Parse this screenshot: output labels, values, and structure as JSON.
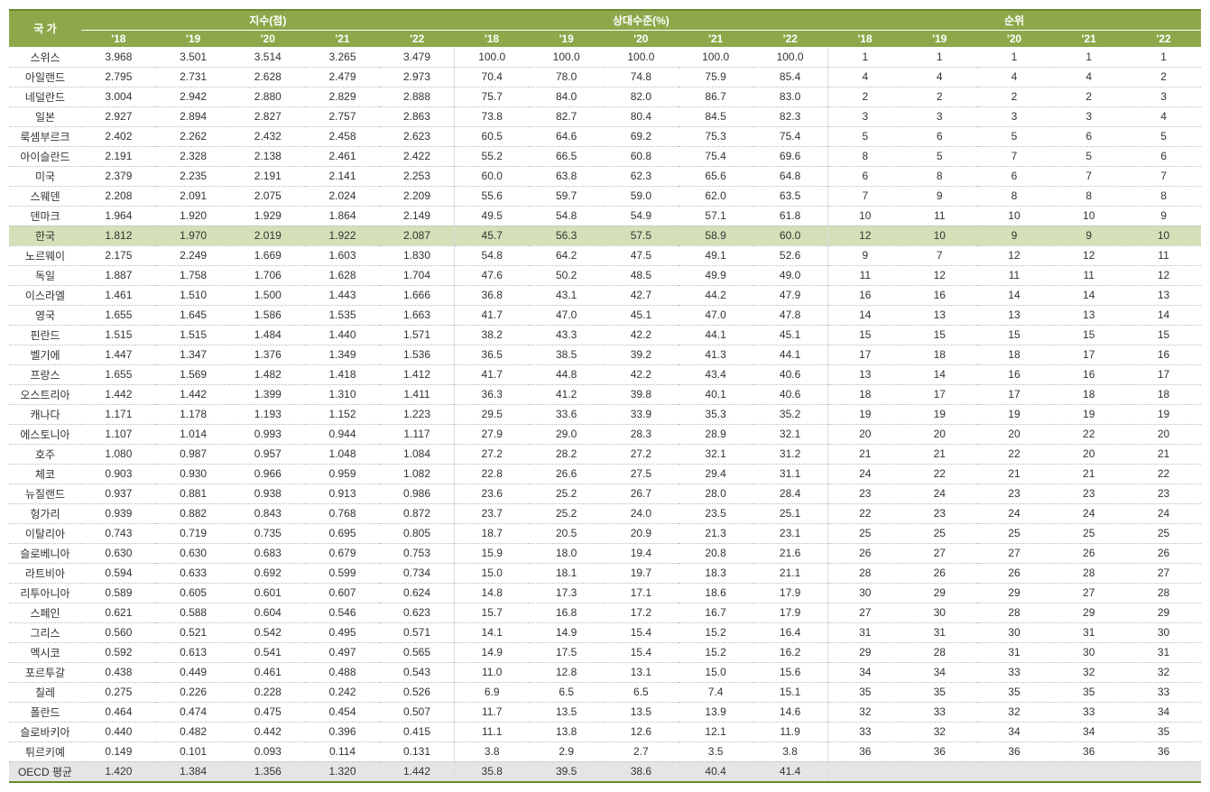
{
  "table": {
    "header": {
      "country_label": "국 가",
      "groups": [
        "지수(점)",
        "상대수준(%)",
        "순위"
      ],
      "years": [
        "'18",
        "'19",
        "'20",
        "'21",
        "'22"
      ]
    },
    "highlight_country": "한국",
    "avg_country": "OECD 평균",
    "colors": {
      "header_bg": "#8ca84a",
      "header_text": "#ffffff",
      "border_top": "#6a8a2f",
      "highlight_bg": "#d4e0b8",
      "avg_bg": "#e5e5e5",
      "row_border": "#bbbbbb"
    },
    "rows": [
      {
        "country": "스위스",
        "index": [
          "3.968",
          "3.501",
          "3.514",
          "3.265",
          "3.479"
        ],
        "relative": [
          "100.0",
          "100.0",
          "100.0",
          "100.0",
          "100.0"
        ],
        "rank": [
          "1",
          "1",
          "1",
          "1",
          "1"
        ]
      },
      {
        "country": "아일랜드",
        "index": [
          "2.795",
          "2.731",
          "2.628",
          "2.479",
          "2.973"
        ],
        "relative": [
          "70.4",
          "78.0",
          "74.8",
          "75.9",
          "85.4"
        ],
        "rank": [
          "4",
          "4",
          "4",
          "4",
          "2"
        ]
      },
      {
        "country": "네덜란드",
        "index": [
          "3.004",
          "2.942",
          "2.880",
          "2.829",
          "2.888"
        ],
        "relative": [
          "75.7",
          "84.0",
          "82.0",
          "86.7",
          "83.0"
        ],
        "rank": [
          "2",
          "2",
          "2",
          "2",
          "3"
        ]
      },
      {
        "country": "일본",
        "index": [
          "2.927",
          "2.894",
          "2.827",
          "2.757",
          "2.863"
        ],
        "relative": [
          "73.8",
          "82.7",
          "80.4",
          "84.5",
          "82.3"
        ],
        "rank": [
          "3",
          "3",
          "3",
          "3",
          "4"
        ]
      },
      {
        "country": "룩셈부르크",
        "index": [
          "2.402",
          "2.262",
          "2.432",
          "2.458",
          "2.623"
        ],
        "relative": [
          "60.5",
          "64.6",
          "69.2",
          "75.3",
          "75.4"
        ],
        "rank": [
          "5",
          "6",
          "5",
          "6",
          "5"
        ]
      },
      {
        "country": "아이슬란드",
        "index": [
          "2.191",
          "2.328",
          "2.138",
          "2.461",
          "2.422"
        ],
        "relative": [
          "55.2",
          "66.5",
          "60.8",
          "75.4",
          "69.6"
        ],
        "rank": [
          "8",
          "5",
          "7",
          "5",
          "6"
        ]
      },
      {
        "country": "미국",
        "index": [
          "2.379",
          "2.235",
          "2.191",
          "2.141",
          "2.253"
        ],
        "relative": [
          "60.0",
          "63.8",
          "62.3",
          "65.6",
          "64.8"
        ],
        "rank": [
          "6",
          "8",
          "6",
          "7",
          "7"
        ]
      },
      {
        "country": "스웨덴",
        "index": [
          "2.208",
          "2.091",
          "2.075",
          "2.024",
          "2.209"
        ],
        "relative": [
          "55.6",
          "59.7",
          "59.0",
          "62.0",
          "63.5"
        ],
        "rank": [
          "7",
          "9",
          "8",
          "8",
          "8"
        ]
      },
      {
        "country": "덴마크",
        "index": [
          "1.964",
          "1.920",
          "1.929",
          "1.864",
          "2.149"
        ],
        "relative": [
          "49.5",
          "54.8",
          "54.9",
          "57.1",
          "61.8"
        ],
        "rank": [
          "10",
          "11",
          "10",
          "10",
          "9"
        ]
      },
      {
        "country": "한국",
        "index": [
          "1.812",
          "1.970",
          "2.019",
          "1.922",
          "2.087"
        ],
        "relative": [
          "45.7",
          "56.3",
          "57.5",
          "58.9",
          "60.0"
        ],
        "rank": [
          "12",
          "10",
          "9",
          "9",
          "10"
        ]
      },
      {
        "country": "노르웨이",
        "index": [
          "2.175",
          "2.249",
          "1.669",
          "1.603",
          "1.830"
        ],
        "relative": [
          "54.8",
          "64.2",
          "47.5",
          "49.1",
          "52.6"
        ],
        "rank": [
          "9",
          "7",
          "12",
          "12",
          "11"
        ]
      },
      {
        "country": "독일",
        "index": [
          "1.887",
          "1.758",
          "1.706",
          "1.628",
          "1.704"
        ],
        "relative": [
          "47.6",
          "50.2",
          "48.5",
          "49.9",
          "49.0"
        ],
        "rank": [
          "11",
          "12",
          "11",
          "11",
          "12"
        ]
      },
      {
        "country": "이스라엘",
        "index": [
          "1.461",
          "1.510",
          "1.500",
          "1.443",
          "1.666"
        ],
        "relative": [
          "36.8",
          "43.1",
          "42.7",
          "44.2",
          "47.9"
        ],
        "rank": [
          "16",
          "16",
          "14",
          "14",
          "13"
        ]
      },
      {
        "country": "영국",
        "index": [
          "1.655",
          "1.645",
          "1.586",
          "1.535",
          "1.663"
        ],
        "relative": [
          "41.7",
          "47.0",
          "45.1",
          "47.0",
          "47.8"
        ],
        "rank": [
          "14",
          "13",
          "13",
          "13",
          "14"
        ]
      },
      {
        "country": "핀란드",
        "index": [
          "1.515",
          "1.515",
          "1.484",
          "1.440",
          "1.571"
        ],
        "relative": [
          "38.2",
          "43.3",
          "42.2",
          "44.1",
          "45.1"
        ],
        "rank": [
          "15",
          "15",
          "15",
          "15",
          "15"
        ]
      },
      {
        "country": "벨기에",
        "index": [
          "1.447",
          "1.347",
          "1.376",
          "1.349",
          "1.536"
        ],
        "relative": [
          "36.5",
          "38.5",
          "39.2",
          "41.3",
          "44.1"
        ],
        "rank": [
          "17",
          "18",
          "18",
          "17",
          "16"
        ]
      },
      {
        "country": "프랑스",
        "index": [
          "1.655",
          "1.569",
          "1.482",
          "1.418",
          "1.412"
        ],
        "relative": [
          "41.7",
          "44.8",
          "42.2",
          "43.4",
          "40.6"
        ],
        "rank": [
          "13",
          "14",
          "16",
          "16",
          "17"
        ]
      },
      {
        "country": "오스트리아",
        "index": [
          "1.442",
          "1.442",
          "1.399",
          "1.310",
          "1.411"
        ],
        "relative": [
          "36.3",
          "41.2",
          "39.8",
          "40.1",
          "40.6"
        ],
        "rank": [
          "18",
          "17",
          "17",
          "18",
          "18"
        ]
      },
      {
        "country": "캐나다",
        "index": [
          "1.171",
          "1.178",
          "1.193",
          "1.152",
          "1.223"
        ],
        "relative": [
          "29.5",
          "33.6",
          "33.9",
          "35.3",
          "35.2"
        ],
        "rank": [
          "19",
          "19",
          "19",
          "19",
          "19"
        ]
      },
      {
        "country": "에스토니아",
        "index": [
          "1.107",
          "1.014",
          "0.993",
          "0.944",
          "1.117"
        ],
        "relative": [
          "27.9",
          "29.0",
          "28.3",
          "28.9",
          "32.1"
        ],
        "rank": [
          "20",
          "20",
          "20",
          "22",
          "20"
        ]
      },
      {
        "country": "호주",
        "index": [
          "1.080",
          "0.987",
          "0.957",
          "1.048",
          "1.084"
        ],
        "relative": [
          "27.2",
          "28.2",
          "27.2",
          "32.1",
          "31.2"
        ],
        "rank": [
          "21",
          "21",
          "22",
          "20",
          "21"
        ]
      },
      {
        "country": "체코",
        "index": [
          "0.903",
          "0.930",
          "0.966",
          "0.959",
          "1.082"
        ],
        "relative": [
          "22.8",
          "26.6",
          "27.5",
          "29.4",
          "31.1"
        ],
        "rank": [
          "24",
          "22",
          "21",
          "21",
          "22"
        ]
      },
      {
        "country": "뉴질랜드",
        "index": [
          "0.937",
          "0.881",
          "0.938",
          "0.913",
          "0.986"
        ],
        "relative": [
          "23.6",
          "25.2",
          "26.7",
          "28.0",
          "28.4"
        ],
        "rank": [
          "23",
          "24",
          "23",
          "23",
          "23"
        ]
      },
      {
        "country": "헝가리",
        "index": [
          "0.939",
          "0.882",
          "0.843",
          "0.768",
          "0.872"
        ],
        "relative": [
          "23.7",
          "25.2",
          "24.0",
          "23.5",
          "25.1"
        ],
        "rank": [
          "22",
          "23",
          "24",
          "24",
          "24"
        ]
      },
      {
        "country": "이탈리아",
        "index": [
          "0.743",
          "0.719",
          "0.735",
          "0.695",
          "0.805"
        ],
        "relative": [
          "18.7",
          "20.5",
          "20.9",
          "21.3",
          "23.1"
        ],
        "rank": [
          "25",
          "25",
          "25",
          "25",
          "25"
        ]
      },
      {
        "country": "슬로베니아",
        "index": [
          "0.630",
          "0.630",
          "0.683",
          "0.679",
          "0.753"
        ],
        "relative": [
          "15.9",
          "18.0",
          "19.4",
          "20.8",
          "21.6"
        ],
        "rank": [
          "26",
          "27",
          "27",
          "26",
          "26"
        ]
      },
      {
        "country": "라트비아",
        "index": [
          "0.594",
          "0.633",
          "0.692",
          "0.599",
          "0.734"
        ],
        "relative": [
          "15.0",
          "18.1",
          "19.7",
          "18.3",
          "21.1"
        ],
        "rank": [
          "28",
          "26",
          "26",
          "28",
          "27"
        ]
      },
      {
        "country": "리투아니아",
        "index": [
          "0.589",
          "0.605",
          "0.601",
          "0.607",
          "0.624"
        ],
        "relative": [
          "14.8",
          "17.3",
          "17.1",
          "18.6",
          "17.9"
        ],
        "rank": [
          "30",
          "29",
          "29",
          "27",
          "28"
        ]
      },
      {
        "country": "스페인",
        "index": [
          "0.621",
          "0.588",
          "0.604",
          "0.546",
          "0.623"
        ],
        "relative": [
          "15.7",
          "16.8",
          "17.2",
          "16.7",
          "17.9"
        ],
        "rank": [
          "27",
          "30",
          "28",
          "29",
          "29"
        ]
      },
      {
        "country": "그리스",
        "index": [
          "0.560",
          "0.521",
          "0.542",
          "0.495",
          "0.571"
        ],
        "relative": [
          "14.1",
          "14.9",
          "15.4",
          "15.2",
          "16.4"
        ],
        "rank": [
          "31",
          "31",
          "30",
          "31",
          "30"
        ]
      },
      {
        "country": "멕시코",
        "index": [
          "0.592",
          "0.613",
          "0.541",
          "0.497",
          "0.565"
        ],
        "relative": [
          "14.9",
          "17.5",
          "15.4",
          "15.2",
          "16.2"
        ],
        "rank": [
          "29",
          "28",
          "31",
          "30",
          "31"
        ]
      },
      {
        "country": "포르투갈",
        "index": [
          "0.438",
          "0.449",
          "0.461",
          "0.488",
          "0.543"
        ],
        "relative": [
          "11.0",
          "12.8",
          "13.1",
          "15.0",
          "15.6"
        ],
        "rank": [
          "34",
          "34",
          "33",
          "32",
          "32"
        ]
      },
      {
        "country": "칠레",
        "index": [
          "0.275",
          "0.226",
          "0.228",
          "0.242",
          "0.526"
        ],
        "relative": [
          "6.9",
          "6.5",
          "6.5",
          "7.4",
          "15.1"
        ],
        "rank": [
          "35",
          "35",
          "35",
          "35",
          "33"
        ]
      },
      {
        "country": "폴란드",
        "index": [
          "0.464",
          "0.474",
          "0.475",
          "0.454",
          "0.507"
        ],
        "relative": [
          "11.7",
          "13.5",
          "13.5",
          "13.9",
          "14.6"
        ],
        "rank": [
          "32",
          "33",
          "32",
          "33",
          "34"
        ]
      },
      {
        "country": "슬로바키아",
        "index": [
          "0.440",
          "0.482",
          "0.442",
          "0.396",
          "0.415"
        ],
        "relative": [
          "11.1",
          "13.8",
          "12.6",
          "12.1",
          "11.9"
        ],
        "rank": [
          "33",
          "32",
          "34",
          "34",
          "35"
        ]
      },
      {
        "country": "튀르키예",
        "index": [
          "0.149",
          "0.101",
          "0.093",
          "0.114",
          "0.131"
        ],
        "relative": [
          "3.8",
          "2.9",
          "2.7",
          "3.5",
          "3.8"
        ],
        "rank": [
          "36",
          "36",
          "36",
          "36",
          "36"
        ]
      },
      {
        "country": "OECD 평균",
        "index": [
          "1.420",
          "1.384",
          "1.356",
          "1.320",
          "1.442"
        ],
        "relative": [
          "35.8",
          "39.5",
          "38.6",
          "40.4",
          "41.4"
        ],
        "rank": [
          "",
          "",
          "",
          "",
          ""
        ]
      }
    ]
  }
}
